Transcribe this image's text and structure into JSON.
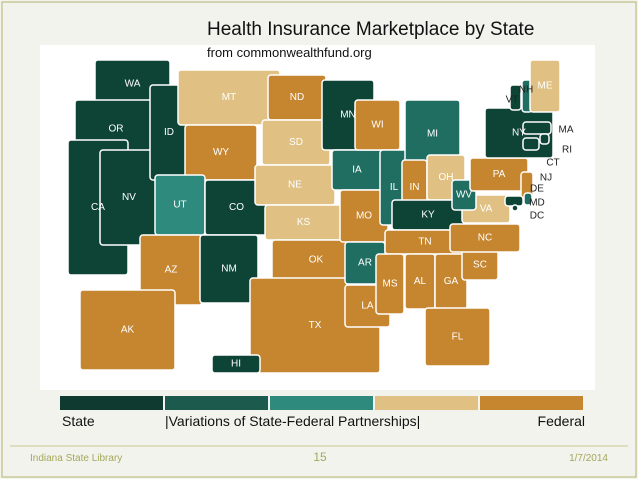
{
  "title": "Health Insurance Marketplace by State",
  "subtitle": "from commonwealthfund.org",
  "states": [
    {
      "label": "WA",
      "color": "#0e4436"
    },
    {
      "label": "OR",
      "color": "#0e4436"
    },
    {
      "label": "CA",
      "color": "#0e4436"
    },
    {
      "label": "NV",
      "color": "#0e4436"
    },
    {
      "label": "ID",
      "color": "#0e4436"
    },
    {
      "label": "MT",
      "color": "#e0c183"
    },
    {
      "label": "WY",
      "color": "#c6852f"
    },
    {
      "label": "UT",
      "color": "#2e8a7c"
    },
    {
      "label": "CO",
      "color": "#0e4436"
    },
    {
      "label": "AZ",
      "color": "#c6852f"
    },
    {
      "label": "NM",
      "color": "#0e4436"
    },
    {
      "label": "ND",
      "color": "#c6852f"
    },
    {
      "label": "SD",
      "color": "#e0c183"
    },
    {
      "label": "NE",
      "color": "#e0c183"
    },
    {
      "label": "KS",
      "color": "#e0c183"
    },
    {
      "label": "OK",
      "color": "#c6852f"
    },
    {
      "label": "TX",
      "color": "#c6852f"
    },
    {
      "label": "MN",
      "color": "#0e4436"
    },
    {
      "label": "IA",
      "color": "#1f6e61"
    },
    {
      "label": "MO",
      "color": "#c6852f"
    },
    {
      "label": "AR",
      "color": "#1f6e61"
    },
    {
      "label": "LA",
      "color": "#c6852f"
    },
    {
      "label": "WI",
      "color": "#c6852f"
    },
    {
      "label": "IL",
      "color": "#1f6e61"
    },
    {
      "label": "MI",
      "color": "#1f6e61"
    },
    {
      "label": "IN",
      "color": "#c6852f"
    },
    {
      "label": "OH",
      "color": "#e0c183"
    },
    {
      "label": "KY",
      "color": "#0e4436"
    },
    {
      "label": "TN",
      "color": "#c6852f"
    },
    {
      "label": "MS",
      "color": "#c6852f"
    },
    {
      "label": "AL",
      "color": "#c6852f"
    },
    {
      "label": "GA",
      "color": "#c6852f"
    },
    {
      "label": "FL",
      "color": "#c6852f"
    },
    {
      "label": "SC",
      "color": "#c6852f"
    },
    {
      "label": "NC",
      "color": "#c6852f"
    },
    {
      "label": "VA",
      "color": "#e0c183"
    },
    {
      "label": "WV",
      "color": "#1f6e61"
    },
    {
      "label": "PA",
      "color": "#c6852f"
    },
    {
      "label": "NY",
      "color": "#0e4436"
    },
    {
      "label": "NJ",
      "color": "#c6852f"
    },
    {
      "label": "DE",
      "color": "#1f6e61"
    },
    {
      "label": "MD",
      "color": "#0e4436"
    },
    {
      "label": "DC",
      "color": "#0e4436"
    },
    {
      "label": "VT",
      "color": "#0e4436"
    },
    {
      "label": "NH",
      "color": "#1f6e61"
    },
    {
      "label": "ME",
      "color": "#e0c183"
    },
    {
      "label": "MA",
      "color": "#0e4436"
    },
    {
      "label": "CT",
      "color": "#0e4436"
    },
    {
      "label": "RI",
      "color": "#0e4436"
    },
    {
      "label": "AK",
      "color": "#c6852f"
    },
    {
      "label": "HI",
      "color": "#0e4436"
    }
  ],
  "legend": {
    "colors": [
      "#0e3a30",
      "#1b5a4c",
      "#2e8a7c",
      "#e0c183",
      "#c6852f"
    ],
    "labels": [
      "State",
      "|Variations of State-Federal Partnerships|",
      "Federal"
    ]
  },
  "footer": {
    "source": "Indiana State Library",
    "page": "15",
    "date": "1/7/2014"
  }
}
